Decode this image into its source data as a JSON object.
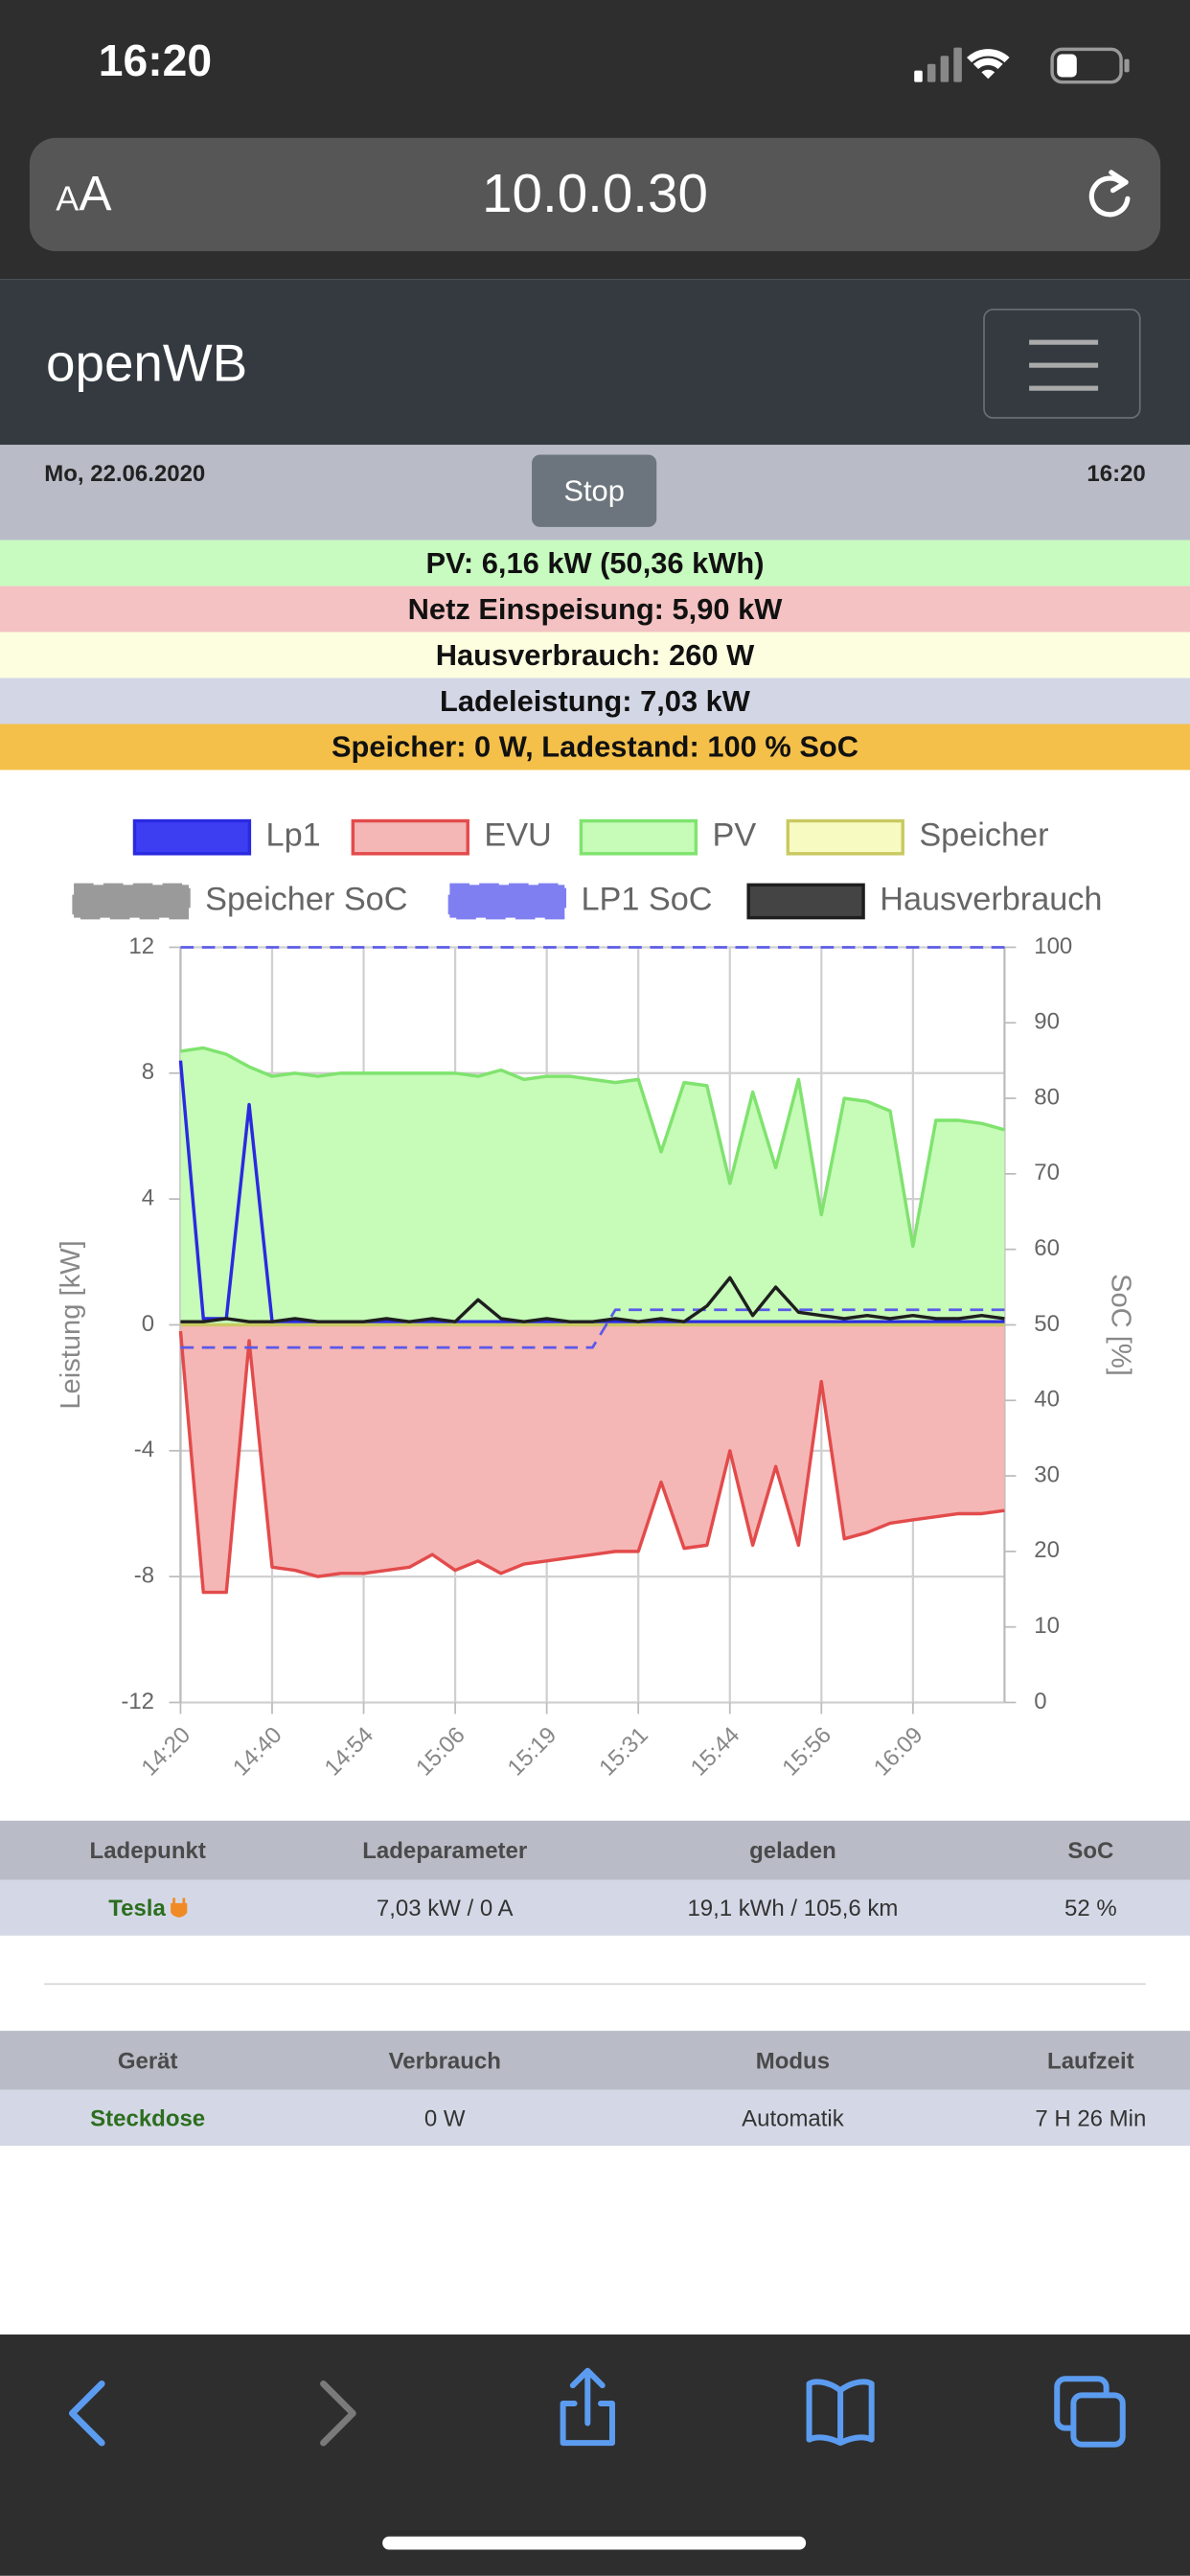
{
  "status_bar": {
    "time": "16:20"
  },
  "browser": {
    "text_size": "AA",
    "url": "10.0.0.30"
  },
  "navbar": {
    "brand": "openWB"
  },
  "header": {
    "date": "Mo, 22.06.2020",
    "button": "Stop",
    "time": "16:20"
  },
  "summary": [
    "PV: 6,16 kW (50,36 kWh)",
    "Netz Einspeisung: 5,90 kW",
    "Hausverbrauch: 260 W",
    "Ladeleistung: 7,03 kW",
    "Speicher: 0 W, Ladestand: 100 % SoC"
  ],
  "chart_data": {
    "type": "line",
    "y_label": "Leistung [kW]",
    "y2_label": "SoC [%]",
    "categories": [
      "14:20",
      null,
      null,
      null,
      "14:40",
      null,
      null,
      null,
      "14:54",
      null,
      null,
      null,
      "15:06",
      null,
      null,
      null,
      "15:19",
      null,
      null,
      null,
      "15:31",
      null,
      null,
      null,
      "15:44",
      null,
      null,
      null,
      "15:56",
      null,
      null,
      null,
      "16:09",
      null,
      null,
      null,
      null
    ],
    "ylim": [
      -12,
      12
    ],
    "yticks": [
      -12,
      -8,
      -4,
      0,
      4,
      8,
      12
    ],
    "y2lim": [
      0,
      100
    ],
    "y2ticks": [
      0,
      10,
      20,
      30,
      40,
      50,
      60,
      70,
      80,
      90,
      100
    ],
    "grid": true,
    "legend": "top",
    "series": [
      {
        "name": "Lp1",
        "color": "#2a2ae0",
        "fill_color": "#3d3df2",
        "values": [
          8.4,
          0.2,
          0.2,
          7.0,
          0.1,
          0.1,
          0.1,
          0.1,
          0.1,
          0.1,
          0.1,
          0.1,
          0.1,
          0.1,
          0.1,
          0.1,
          0.1,
          0.1,
          0.1,
          0.1,
          0.1,
          0.1,
          0.1,
          0.1,
          0.1,
          0.1,
          0.1,
          0.1,
          0.1,
          0.1,
          0.1,
          0.1,
          0.1,
          0.1,
          0.1,
          0.1,
          0.1
        ]
      },
      {
        "name": "EVU",
        "color": "#e34b4b",
        "fill_color": "#f5b6b6",
        "fill": true,
        "values": [
          -0.2,
          -8.5,
          -8.5,
          -0.5,
          -7.7,
          -7.8,
          -8.0,
          -7.9,
          -7.9,
          -7.8,
          -7.7,
          -7.3,
          -7.8,
          -7.5,
          -7.9,
          -7.6,
          -7.5,
          -7.4,
          -7.3,
          -7.2,
          -7.2,
          -5.0,
          -7.1,
          -7.0,
          -4.0,
          -7.0,
          -4.5,
          -7.0,
          -1.8,
          -6.8,
          -6.6,
          -6.3,
          -6.2,
          -6.1,
          -6.0,
          -6.0,
          -5.9
        ]
      },
      {
        "name": "PV",
        "color": "#7fe36e",
        "fill_color": "#c6fbb8",
        "fill": true,
        "values": [
          8.7,
          8.8,
          8.6,
          8.2,
          7.9,
          8.0,
          7.9,
          8.0,
          8.0,
          8.0,
          8.0,
          8.0,
          8.0,
          7.9,
          8.1,
          7.8,
          7.9,
          7.9,
          7.8,
          7.7,
          7.8,
          5.5,
          7.7,
          7.6,
          4.5,
          7.4,
          5.0,
          7.8,
          3.5,
          7.2,
          7.1,
          6.8,
          2.5,
          6.5,
          6.5,
          6.4,
          6.2
        ]
      },
      {
        "name": "Speicher",
        "color": "#c9c962",
        "fill_color": "#f7fbc2",
        "values": [
          0,
          0,
          0,
          0,
          0,
          0,
          0,
          0,
          0,
          0,
          0,
          0,
          0,
          0,
          0,
          0,
          0,
          0,
          0,
          0,
          0,
          0,
          0,
          0,
          0,
          0,
          0,
          0,
          0,
          0,
          0,
          0,
          0,
          0,
          0,
          0,
          0
        ]
      },
      {
        "name": "Speicher SoC",
        "color": "#5d5de6",
        "fill_color": "#9a9a9a",
        "dashed": true,
        "axis": "y2",
        "values": [
          100,
          100,
          100,
          100,
          100,
          100,
          100,
          100,
          100,
          100,
          100,
          100,
          100,
          100,
          100,
          100,
          100,
          100,
          100,
          100,
          100,
          100,
          100,
          100,
          100,
          100,
          100,
          100,
          100,
          100,
          100,
          100,
          100,
          100,
          100,
          100,
          100
        ]
      },
      {
        "name": "LP1 SoC",
        "color": "#5a5ae8",
        "fill_color": "#7f7ff2",
        "dashed": true,
        "axis": "y2",
        "values": [
          47,
          47,
          47,
          47,
          47,
          47,
          47,
          47,
          47,
          47,
          47,
          47,
          47,
          47,
          47,
          47,
          47,
          47,
          47,
          52,
          52,
          52,
          52,
          52,
          52,
          52,
          52,
          52,
          52,
          52,
          52,
          52,
          52,
          52,
          52,
          52,
          52
        ]
      },
      {
        "name": "Hausverbrauch",
        "color": "#1e1e1e",
        "fill_color": "#444444",
        "values": [
          0.1,
          0.1,
          0.2,
          0.1,
          0.1,
          0.2,
          0.1,
          0.1,
          0.1,
          0.2,
          0.1,
          0.2,
          0.1,
          0.8,
          0.2,
          0.1,
          0.2,
          0.1,
          0.1,
          0.2,
          0.1,
          0.2,
          0.1,
          0.6,
          1.5,
          0.3,
          1.2,
          0.4,
          0.3,
          0.2,
          0.3,
          0.2,
          0.3,
          0.2,
          0.2,
          0.3,
          0.2
        ]
      }
    ]
  },
  "ladepunkte": {
    "columns": [
      "Ladepunkt",
      "Ladeparameter",
      "geladen",
      "SoC"
    ],
    "rows": [
      [
        "Tesla",
        "7,03 kW / 0 A",
        "19,1 kWh / 105,6 km",
        "52 %"
      ]
    ]
  },
  "geraete": {
    "columns": [
      "Gerät",
      "Verbrauch",
      "Modus",
      "Laufzeit"
    ],
    "rows": [
      [
        "Steckdose",
        "0 W",
        "Automatik",
        "7 H 26 Min"
      ]
    ]
  }
}
